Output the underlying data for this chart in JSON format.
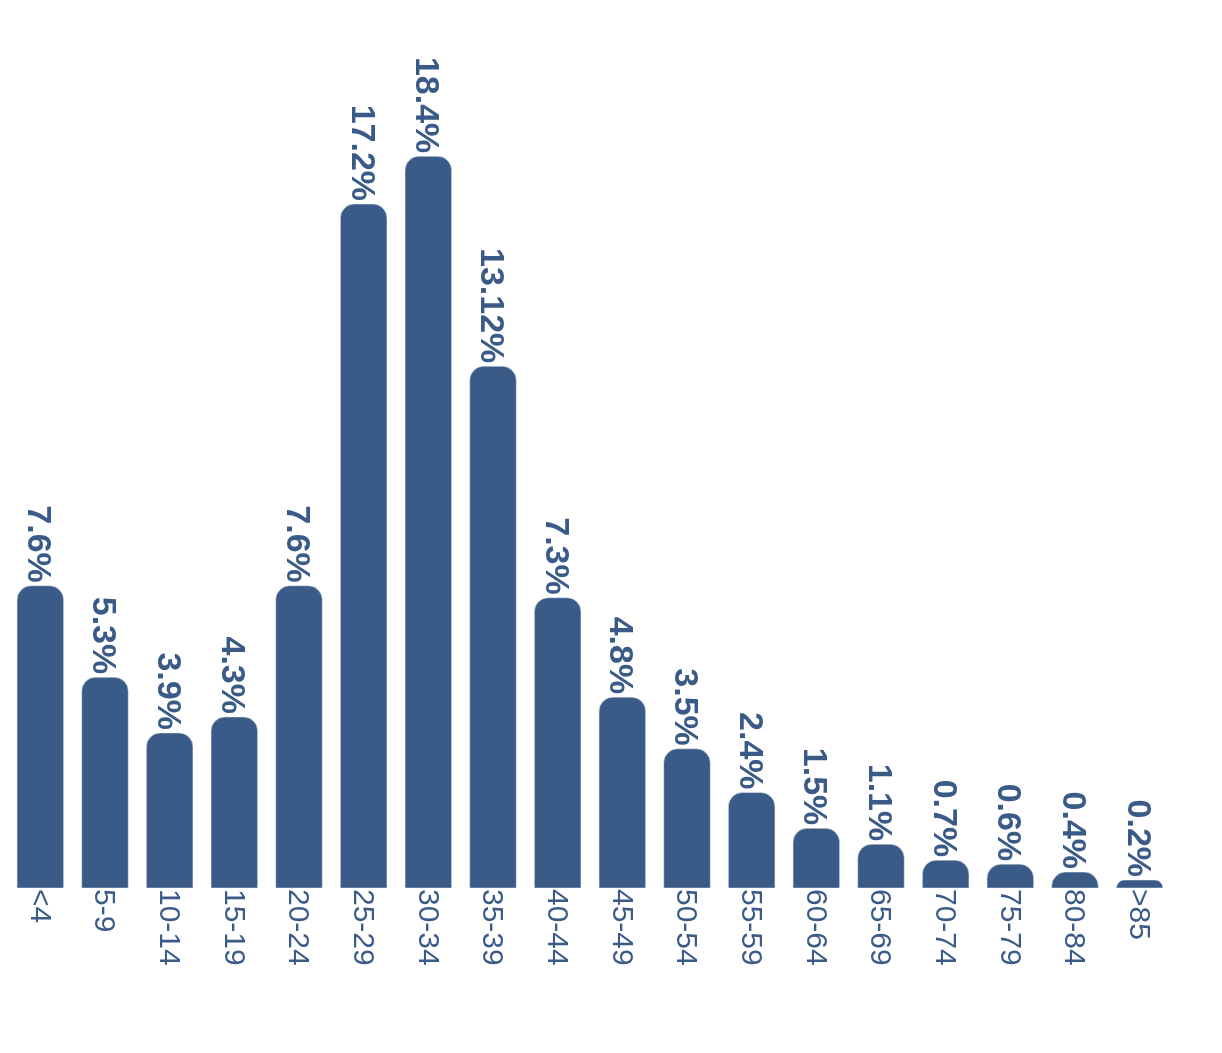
{
  "chart_data": {
    "type": "bar",
    "categories": [
      "<4",
      "5-9",
      "10-14",
      "15-19",
      "20-24",
      "25-29",
      "30-34",
      "35-39",
      "40-44",
      "45-49",
      "50-54",
      "55-59",
      "60-64",
      "65-69",
      "70-74",
      "75-79",
      "80-84",
      ">85"
    ],
    "values": [
      7.6,
      5.3,
      3.9,
      4.3,
      7.6,
      17.2,
      18.4,
      13.12,
      7.3,
      4.8,
      3.5,
      2.4,
      1.5,
      1.1,
      0.7,
      0.6,
      0.4,
      0.2
    ],
    "value_labels": [
      "7.6%",
      "5.3%",
      "3.9%",
      "4.3%",
      "7.6%",
      "17.2%",
      "18.4%",
      "13.12%",
      "7.3%",
      "4.8%",
      "3.5%",
      "2.4%",
      "1.5%",
      "1.1%",
      "0.7%",
      "0.6%",
      "0.4%",
      "0.2%"
    ],
    "color": "#3a5a87"
  }
}
